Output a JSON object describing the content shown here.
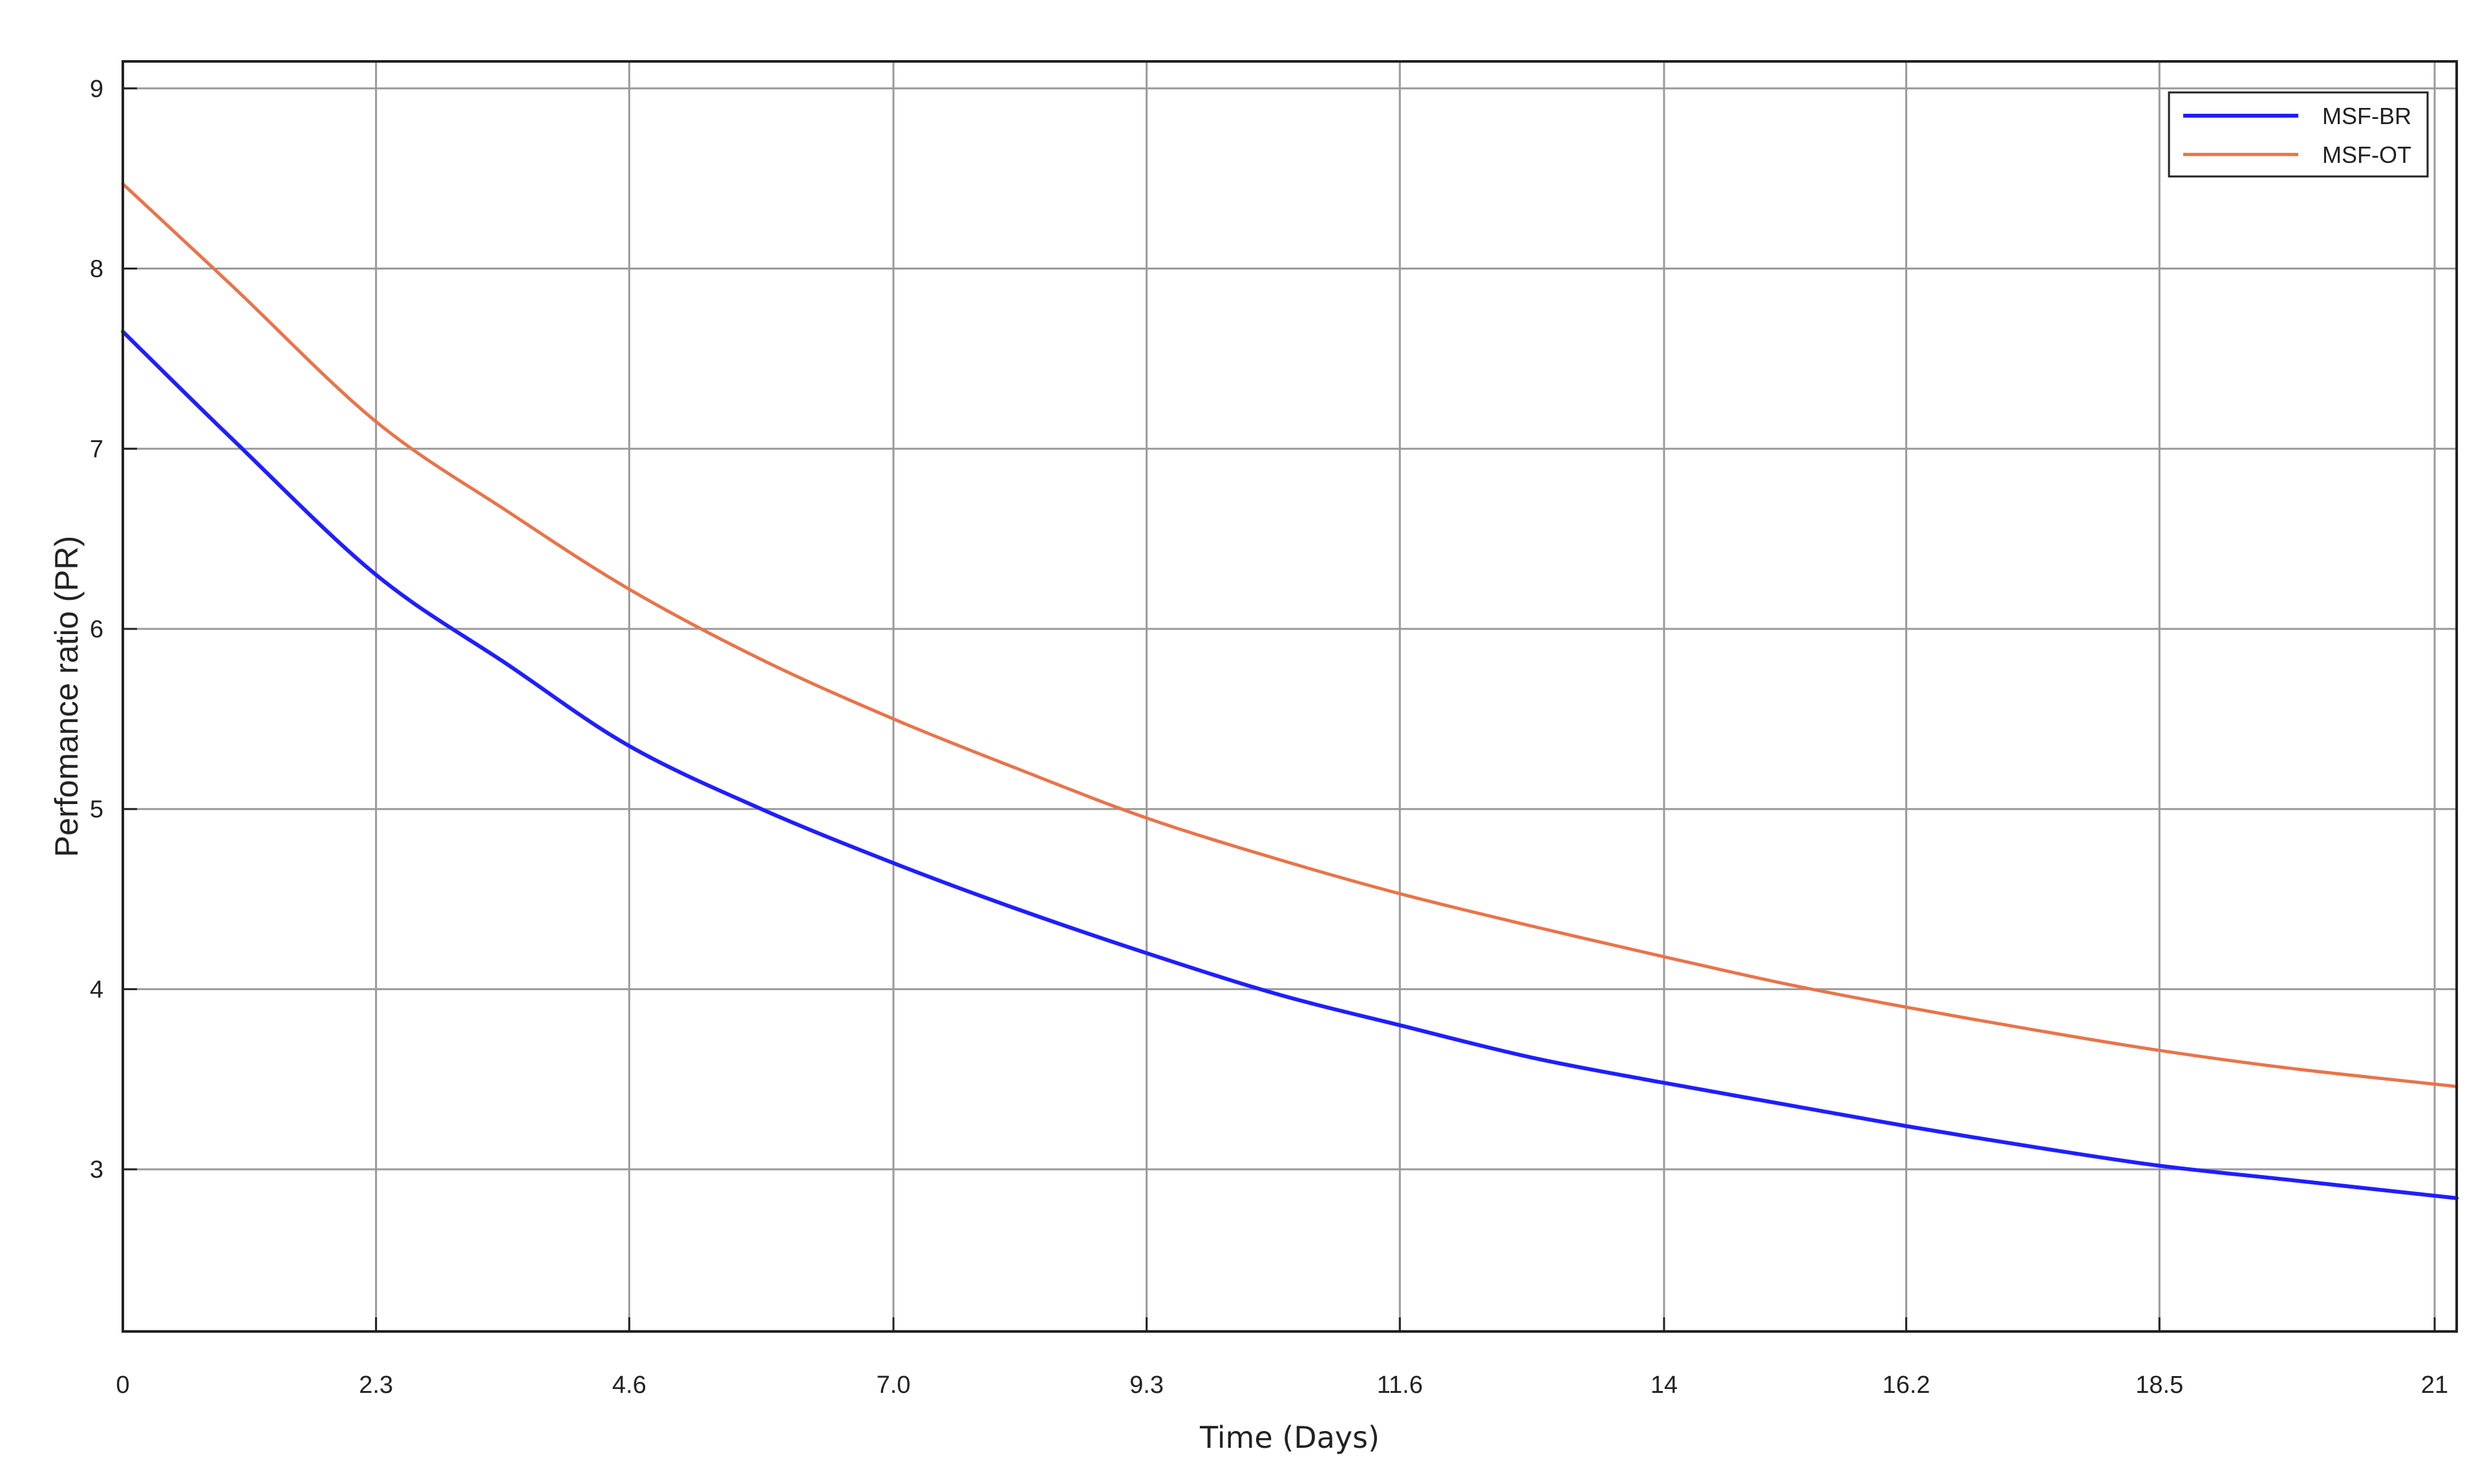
{
  "chart_data": {
    "type": "line",
    "title": "",
    "xlabel": "Time (Days)",
    "ylabel": "Perfomance ratio (PR)",
    "xlim": [
      0,
      21.2
    ],
    "ylim": [
      2.1,
      9.15
    ],
    "x_ticks": [
      0,
      2.3,
      4.6,
      7.0,
      9.3,
      11.6,
      14.0,
      16.2,
      18.5,
      21.0
    ],
    "x_tick_labels": [
      "0",
      "2.3",
      "4.6",
      "7.0",
      "9.3",
      "11.6",
      "14",
      "16.2",
      "18.5",
      "21"
    ],
    "y_ticks": [
      3,
      4,
      5,
      6,
      7,
      8,
      9
    ],
    "y_tick_labels": [
      "3",
      "4",
      "5",
      "6",
      "7",
      "8",
      "9"
    ],
    "grid": true,
    "legend_position": "top-right",
    "colors": {
      "MSF-BR": "#1f1fff",
      "MSF-OT": "#e8744a",
      "grid": "#9a9a9a",
      "axes": "#222222"
    },
    "series": [
      {
        "name": "MSF-BR",
        "x": [
          0,
          1,
          2.3,
          3.5,
          4.6,
          5.8,
          7.0,
          8.1,
          9.3,
          10.5,
          11.6,
          12.8,
          14.0,
          15.1,
          16.2,
          17.4,
          18.5,
          19.7,
          21.2
        ],
        "values": [
          7.65,
          7.05,
          6.3,
          5.8,
          5.35,
          5.0,
          4.7,
          4.45,
          4.2,
          3.97,
          3.8,
          3.62,
          3.48,
          3.36,
          3.24,
          3.12,
          3.02,
          2.94,
          2.84
        ]
      },
      {
        "name": "MSF-OT",
        "x": [
          0,
          1,
          2.3,
          3.5,
          4.6,
          5.8,
          7.0,
          8.1,
          9.3,
          10.5,
          11.6,
          12.8,
          14.0,
          15.1,
          16.2,
          17.4,
          18.5,
          19.7,
          21.2
        ],
        "values": [
          8.47,
          7.9,
          7.15,
          6.65,
          6.22,
          5.83,
          5.5,
          5.23,
          4.95,
          4.72,
          4.53,
          4.35,
          4.18,
          4.03,
          3.9,
          3.77,
          3.66,
          3.56,
          3.46
        ]
      }
    ]
  }
}
